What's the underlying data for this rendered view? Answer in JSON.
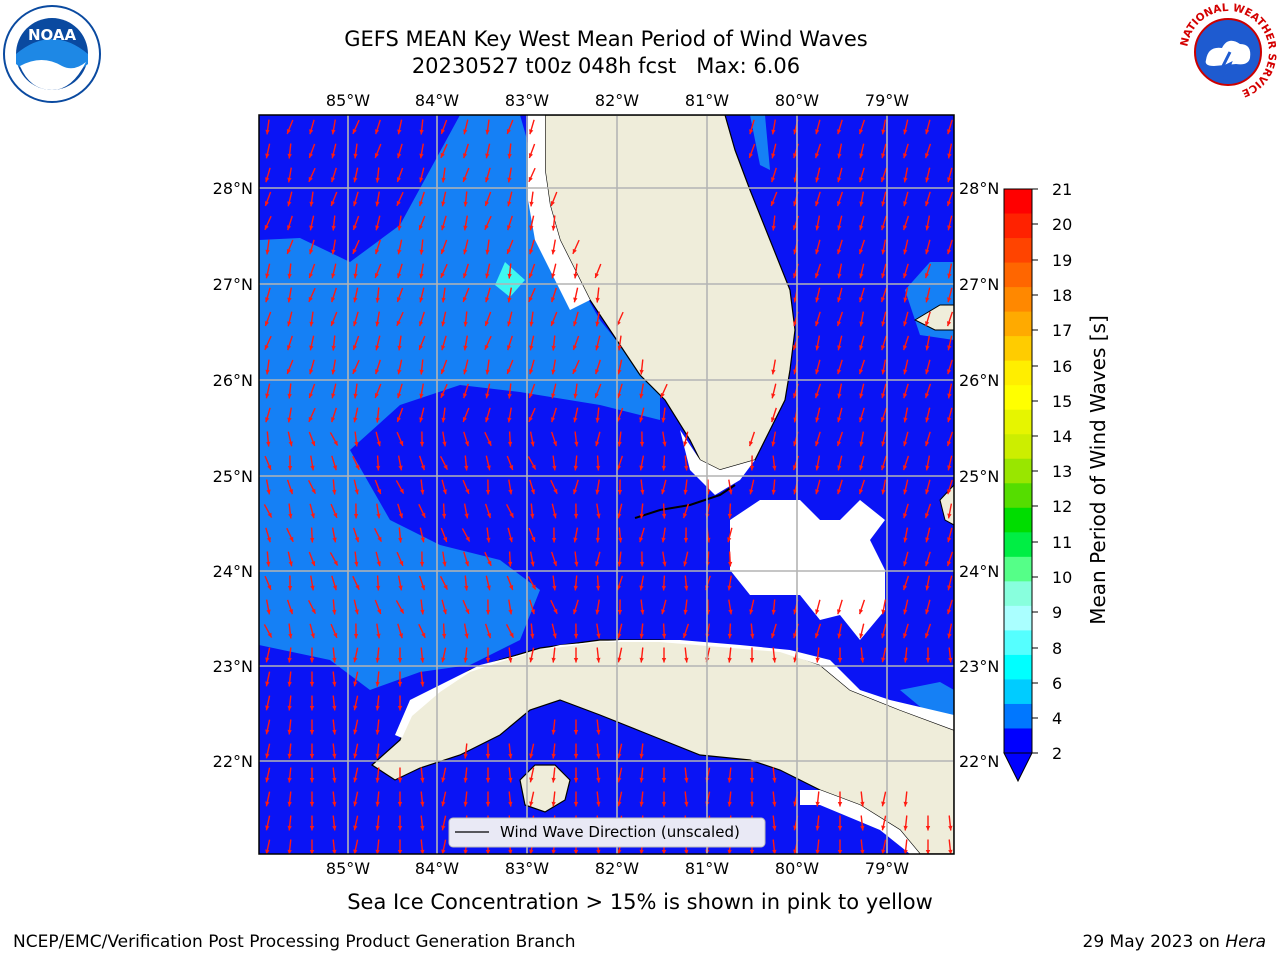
{
  "title": {
    "line1": "GEFS MEAN Key West Mean Period of Wind Waves",
    "line2": "20230527 t00z 048h fcst   Max: 6.06"
  },
  "map": {
    "lon_ticks": [
      "85°W",
      "84°W",
      "83°W",
      "82°W",
      "81°W",
      "80°W",
      "79°W"
    ],
    "lat_ticks": [
      "28°N",
      "27°N",
      "26°N",
      "25°N",
      "24°N",
      "23°N",
      "22°N"
    ],
    "legend_label": "Wind Wave Direction (unscaled)",
    "colors": {
      "ocean_low": "#0a14f5",
      "ocean_mid": "#1580f5",
      "ocean_cyan": "#3ff8f0",
      "land": "#efedda",
      "missing": "#ffffff",
      "arrow": "#ff1a10",
      "grid": "#b4b4b4"
    }
  },
  "colorbar": {
    "label": "Mean Period of Wind Waves [s]",
    "ticks": [
      "21",
      "20",
      "19",
      "18",
      "17",
      "16",
      "15",
      "14",
      "13",
      "12",
      "11",
      "10",
      "9",
      "8",
      "6",
      "4",
      "2"
    ],
    "colors": [
      "#ff0000",
      "#ff2200",
      "#ff4400",
      "#ff6600",
      "#ff8800",
      "#ffaa00",
      "#ffcc00",
      "#ffee00",
      "#ffff00",
      "#e6f500",
      "#ccee00",
      "#99e600",
      "#55dd00",
      "#00dd00",
      "#00ee44",
      "#55ff88",
      "#88ffdd",
      "#aaffff",
      "#55ffff",
      "#00ffff",
      "#00ccff",
      "#0077ff",
      "#0000ff"
    ]
  },
  "subtitle": "Sea Ice Concentration > 15% is shown in pink to yellow",
  "footer": {
    "left": "NCEP/EMC/Verification Post Processing Product Generation Branch",
    "right_date": "29 May 2023 on ",
    "right_host": "Hera"
  },
  "logos": {
    "noaa": "NOAA",
    "nws_ring": "NATIONAL WEATHER SERVICE"
  }
}
